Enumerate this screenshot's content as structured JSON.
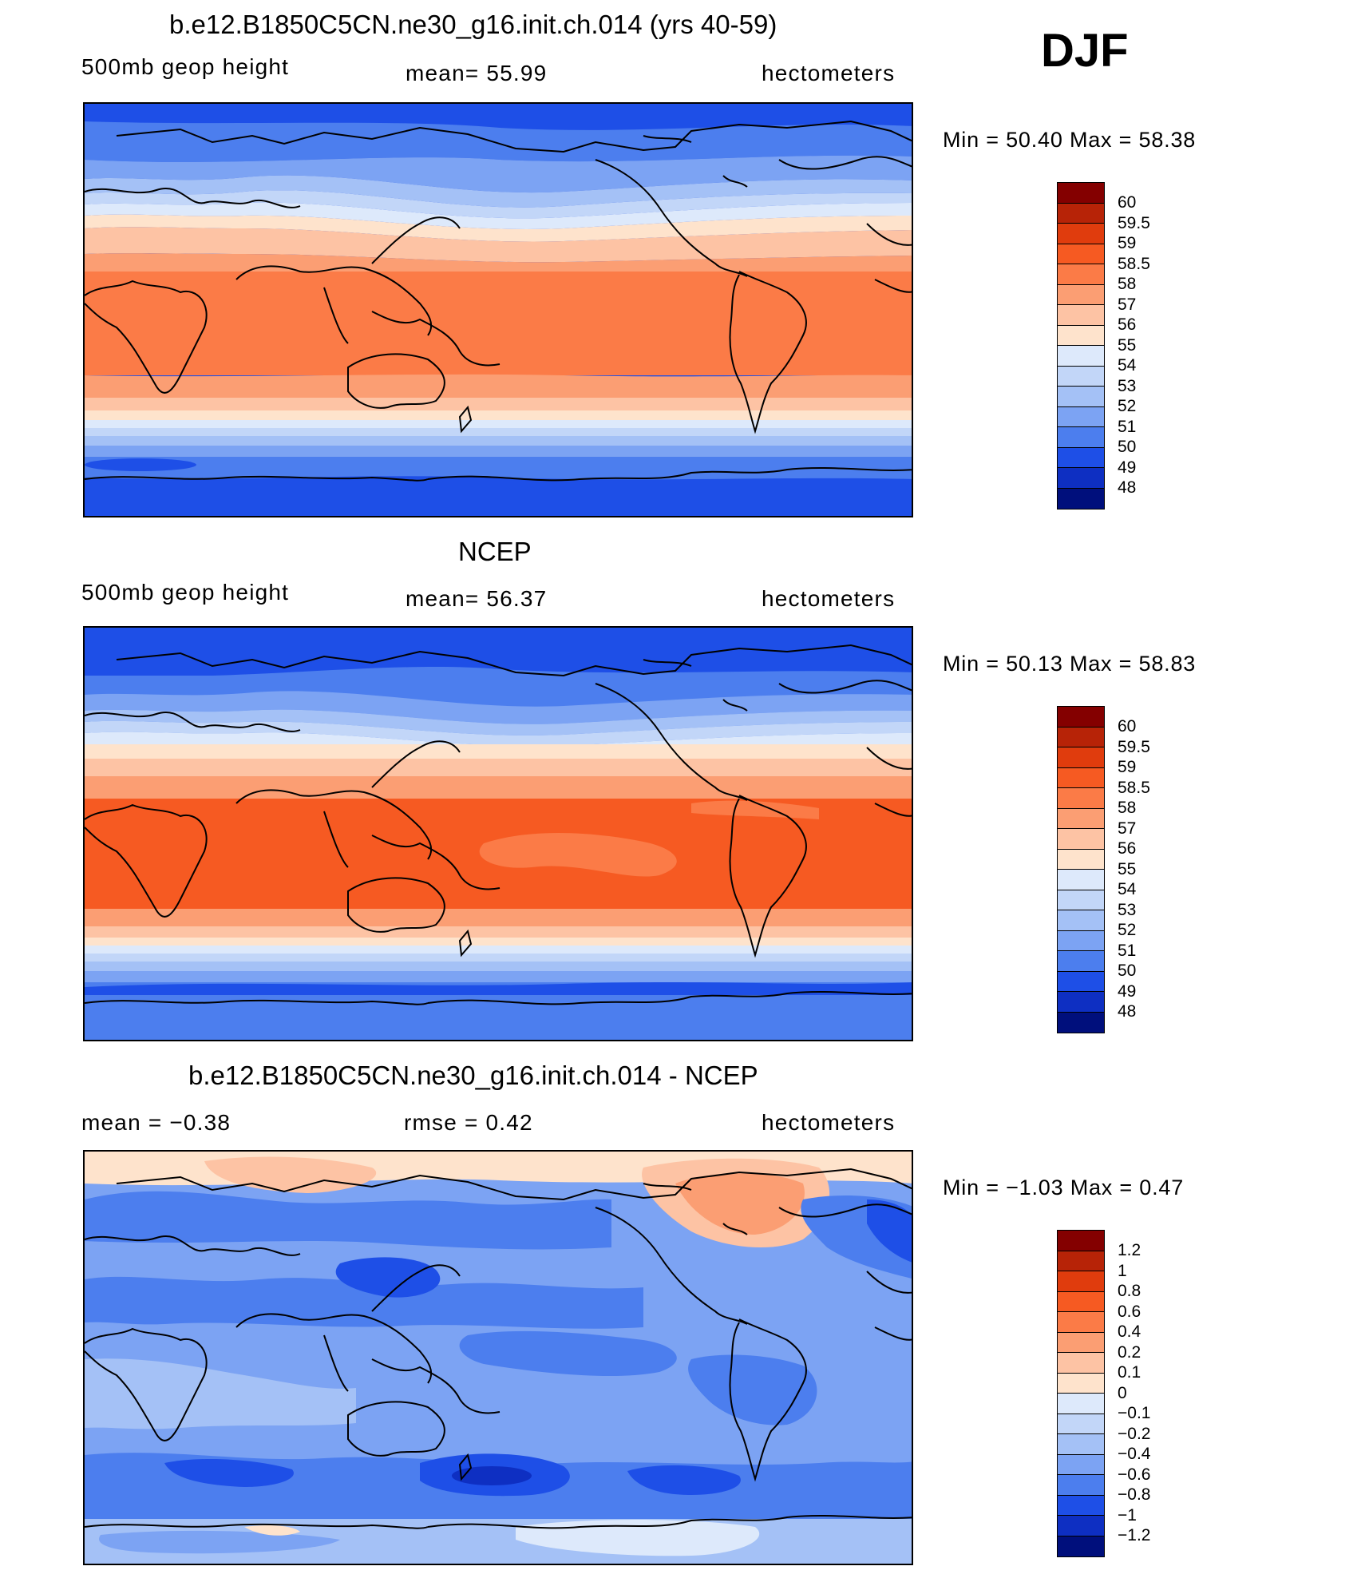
{
  "season": "DJF",
  "panels": [
    {
      "title": "b.e12.B1850C5CN.ne30_g16.init.ch.014 (yrs 40-59)",
      "left_label": "500mb  geop  height",
      "center_label": "mean=   55.99",
      "right_label": "hectometers",
      "minmax": "Min  =   50.40  Max  =   58.38",
      "colorbar": {
        "labels": [
          "60",
          "59.5",
          "59",
          "58.5",
          "58",
          "57",
          "56",
          "55",
          "54",
          "53",
          "52",
          "51",
          "50",
          "49",
          "48"
        ],
        "colors": [
          "#840000",
          "#b72307",
          "#e03c0d",
          "#f65a22",
          "#fb7b47",
          "#fb9e73",
          "#fdc3a4",
          "#fee3cc",
          "#dde9fb",
          "#c2d6f8",
          "#a4c1f6",
          "#7ca3f3",
          "#4c7eee",
          "#1e4fe7",
          "#0e2fc2",
          "#000f7c"
        ]
      }
    },
    {
      "title": "NCEP",
      "left_label": "500mb  geop  height",
      "center_label": "mean=   56.37",
      "right_label": "hectometers",
      "minmax": "Min  =   50.13  Max  =   58.83",
      "colorbar": {
        "labels": [
          "60",
          "59.5",
          "59",
          "58.5",
          "58",
          "57",
          "56",
          "55",
          "54",
          "53",
          "52",
          "51",
          "50",
          "49",
          "48"
        ],
        "colors": [
          "#840000",
          "#b72307",
          "#e03c0d",
          "#f65a22",
          "#fb7b47",
          "#fb9e73",
          "#fdc3a4",
          "#fee3cc",
          "#dde9fb",
          "#c2d6f8",
          "#a4c1f6",
          "#7ca3f3",
          "#4c7eee",
          "#1e4fe7",
          "#0e2fc2",
          "#000f7c"
        ]
      }
    },
    {
      "title": "b.e12.B1850C5CN.ne30_g16.init.ch.014 - NCEP",
      "left_label": "mean  =   −0.38",
      "center_label": "rmse  =     0.42",
      "right_label": "hectometers",
      "minmax": "Min  =   −1.03  Max  =     0.47",
      "colorbar": {
        "labels": [
          "1.2",
          "1",
          "0.8",
          "0.6",
          "0.4",
          "0.2",
          "0.1",
          "0",
          "−0.1",
          "−0.2",
          "−0.4",
          "−0.6",
          "−0.8",
          "−1",
          "−1.2"
        ],
        "colors": [
          "#840000",
          "#b72307",
          "#e03c0d",
          "#f65a22",
          "#fb7b47",
          "#fb9e73",
          "#fdc3a4",
          "#fee3cc",
          "#dde9fb",
          "#c2d6f8",
          "#a4c1f6",
          "#7ca3f3",
          "#4c7eee",
          "#1e4fe7",
          "#0e2fc2",
          "#000f7c"
        ]
      }
    }
  ]
}
